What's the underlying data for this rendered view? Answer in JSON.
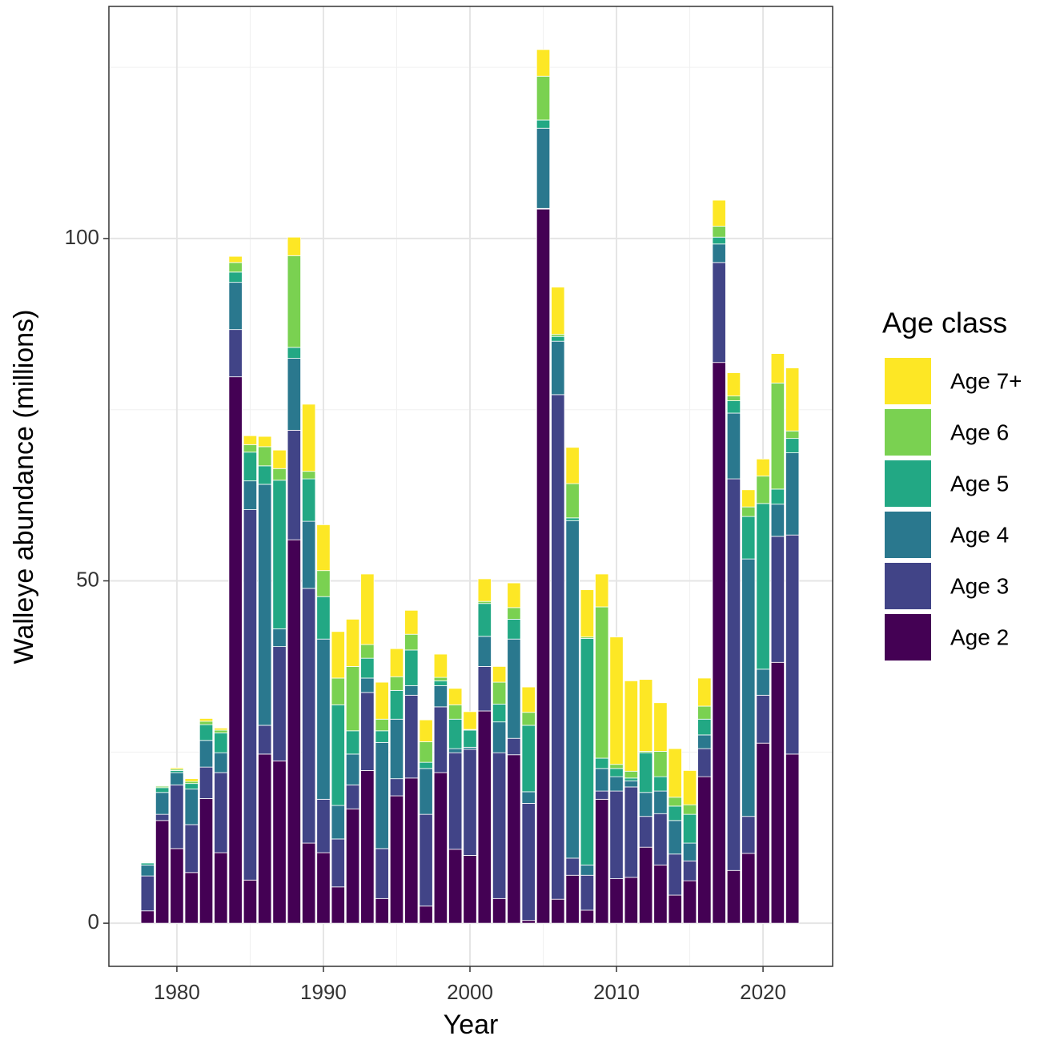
{
  "chart_data": {
    "type": "stacked_bar",
    "x_label": "Year",
    "y_label": "Walleye abundance (millions)",
    "legend_title": "Age class",
    "legend_position": "right",
    "grid": true,
    "x": [
      1978,
      1979,
      1980,
      1981,
      1982,
      1983,
      1984,
      1985,
      1986,
      1987,
      1988,
      1989,
      1990,
      1991,
      1992,
      1993,
      1994,
      1995,
      1996,
      1997,
      1998,
      1999,
      2000,
      2001,
      2002,
      2003,
      2004,
      2005,
      2006,
      2007,
      2008,
      2009,
      2010,
      2011,
      2012,
      2013,
      2014,
      2015,
      2016,
      2017,
      2018,
      2019,
      2020,
      2021,
      2022
    ],
    "xlim": [
      1975.36,
      2024.75
    ],
    "xticks": [
      1980,
      1990,
      2000,
      2010,
      2020
    ],
    "ylim": [
      -6.3,
      133.9
    ],
    "yticks": [
      0,
      50,
      100
    ],
    "series": [
      {
        "name": "Age 2",
        "color": "#440154",
        "values": [
          1.8,
          15.0,
          10.9,
          7.4,
          18.2,
          10.3,
          79.8,
          6.3,
          24.7,
          23.7,
          56.0,
          11.7,
          10.3,
          5.3,
          16.7,
          22.3,
          3.6,
          18.6,
          21.2,
          2.5,
          22.0,
          10.8,
          9.9,
          31.0,
          3.6,
          24.6,
          0.4,
          104.3,
          3.5,
          7.0,
          1.9,
          18.1,
          6.5,
          6.7,
          11.1,
          8.5,
          4.1,
          6.2,
          21.4,
          81.9,
          7.7,
          10.2,
          26.3,
          38.1,
          24.7
        ]
      },
      {
        "name": "Age 3",
        "color": "#414487",
        "values": [
          5.1,
          0.9,
          9.3,
          7.0,
          4.6,
          11.7,
          6.9,
          54.1,
          4.2,
          16.7,
          16.0,
          37.2,
          7.8,
          7.0,
          3.5,
          11.4,
          7.3,
          2.5,
          12.1,
          13.4,
          9.6,
          14.1,
          15.5,
          6.5,
          21.3,
          2.4,
          17.1,
          0.1,
          73.7,
          2.5,
          5.1,
          1.2,
          12.8,
          13.2,
          4.5,
          7.5,
          6.0,
          2.9,
          4.1,
          14.6,
          57.2,
          5.4,
          7.0,
          18.4,
          32.0
        ]
      },
      {
        "name": "Age 4",
        "color": "#2A788E",
        "values": [
          1.6,
          3.2,
          1.8,
          5.2,
          3.9,
          2.9,
          6.9,
          4.2,
          35.2,
          2.6,
          10.5,
          9.8,
          23.4,
          4.9,
          4.5,
          2.1,
          15.5,
          8.7,
          1.4,
          6.7,
          3.1,
          0.6,
          0.3,
          4.4,
          4.5,
          14.5,
          1.7,
          11.7,
          7.8,
          49.3,
          1.5,
          3.3,
          2.1,
          0.9,
          3.5,
          3.3,
          4.9,
          2.6,
          2.0,
          2.7,
          9.6,
          37.6,
          3.8,
          4.7,
          12.0
        ]
      },
      {
        "name": "Age 5",
        "color": "#22A884",
        "values": [
          0.3,
          0.7,
          0.3,
          0.8,
          2.3,
          2.9,
          1.5,
          4.2,
          2.7,
          21.7,
          1.6,
          6.2,
          6.2,
          14.7,
          3.4,
          2.9,
          1.7,
          4.2,
          5.2,
          0.9,
          0.7,
          4.3,
          2.5,
          4.8,
          2.6,
          2.9,
          9.7,
          1.2,
          0.7,
          0.4,
          33.1,
          1.5,
          1.2,
          0.4,
          5.8,
          2.1,
          2.1,
          4.2,
          2.3,
          1.0,
          1.8,
          6.2,
          24.2,
          2.2,
          2.1
        ]
      },
      {
        "name": "Age 6",
        "color": "#7AD151",
        "values": [
          0.1,
          0.2,
          0.2,
          0.3,
          0.5,
          0.4,
          1.4,
          1.1,
          2.8,
          1.7,
          13.4,
          1.1,
          3.8,
          3.9,
          9.4,
          2.0,
          1.7,
          2.0,
          2.3,
          3.0,
          0.5,
          2.1,
          0.1,
          0.3,
          3.2,
          1.7,
          1.9,
          6.4,
          0.3,
          5.0,
          0.2,
          22.1,
          0.6,
          1.0,
          0.2,
          3.7,
          1.3,
          1.4,
          1.9,
          1.6,
          0.7,
          1.4,
          4.0,
          15.5,
          1.1
        ]
      },
      {
        "name": "Age 7+",
        "color": "#FDE725",
        "values": [
          0.1,
          0.1,
          0.2,
          0.4,
          0.4,
          0.3,
          0.9,
          1.3,
          1.5,
          2.7,
          2.7,
          9.8,
          6.7,
          6.8,
          6.9,
          10.3,
          5.4,
          4.1,
          3.5,
          3.2,
          3.4,
          2.4,
          2.6,
          3.3,
          2.3,
          3.6,
          3.7,
          3.9,
          6.9,
          5.3,
          6.9,
          4.8,
          18.6,
          13.2,
          10.5,
          7.1,
          7.1,
          5.0,
          4.1,
          3.8,
          3.4,
          2.5,
          2.5,
          4.3,
          9.2
        ]
      }
    ]
  }
}
